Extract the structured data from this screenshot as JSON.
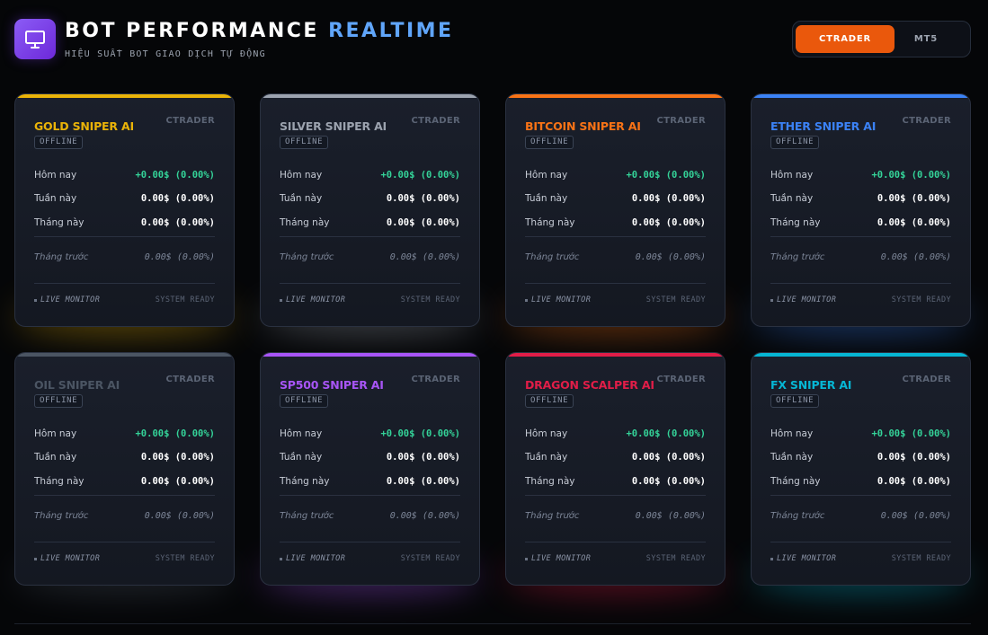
{
  "header": {
    "title_main": "BOT PERFORMANCE",
    "title_accent": "REALTIME",
    "subtitle": "HIỆU SUẤT BOT GIAO DỊCH TỰ ĐỘNG",
    "icon": "monitor-icon"
  },
  "platform_toggle": {
    "options": [
      "CTRADER",
      "MT5"
    ],
    "selected": "CTRADER"
  },
  "labels": {
    "today": "Hôm nay",
    "week": "Tuần này",
    "month": "Tháng này",
    "prev_month": "Tháng trước",
    "live_monitor": "LIVE MONITOR",
    "system_ready": "SYSTEM READY"
  },
  "bots": [
    {
      "name": "GOLD SNIPER AI",
      "platform": "CTRADER",
      "status": "OFFLINE",
      "accent": "#eab308",
      "today": "+0.00$ (0.00%)",
      "week": "0.00$ (0.00%)",
      "month": "0.00$ (0.00%)",
      "prev_month": "0.00$ (0.00%)"
    },
    {
      "name": "SILVER SNIPER AI",
      "platform": "CTRADER",
      "status": "OFFLINE",
      "accent": "#9ca3af",
      "today": "+0.00$ (0.00%)",
      "week": "0.00$ (0.00%)",
      "month": "0.00$ (0.00%)",
      "prev_month": "0.00$ (0.00%)"
    },
    {
      "name": "BITCOIN SNIPER AI",
      "platform": "CTRADER",
      "status": "OFFLINE",
      "accent": "#f97316",
      "today": "+0.00$ (0.00%)",
      "week": "0.00$ (0.00%)",
      "month": "0.00$ (0.00%)",
      "prev_month": "0.00$ (0.00%)"
    },
    {
      "name": "ETHER SNIPER AI",
      "platform": "CTRADER",
      "status": "OFFLINE",
      "accent": "#3b82f6",
      "today": "+0.00$ (0.00%)",
      "week": "0.00$ (0.00%)",
      "month": "0.00$ (0.00%)",
      "prev_month": "0.00$ (0.00%)"
    },
    {
      "name": "OIL SNIPER AI",
      "platform": "CTRADER",
      "status": "OFFLINE",
      "accent": "#4b5563",
      "today": "+0.00$ (0.00%)",
      "week": "0.00$ (0.00%)",
      "month": "0.00$ (0.00%)",
      "prev_month": "0.00$ (0.00%)"
    },
    {
      "name": "SP500 SNIPER AI",
      "platform": "CTRADER",
      "status": "OFFLINE",
      "accent": "#a855f7",
      "today": "+0.00$ (0.00%)",
      "week": "0.00$ (0.00%)",
      "month": "0.00$ (0.00%)",
      "prev_month": "0.00$ (0.00%)"
    },
    {
      "name": "DRAGON SCALPER AI",
      "platform": "CTRADER",
      "status": "OFFLINE",
      "accent": "#e11d48",
      "today": "+0.00$ (0.00%)",
      "week": "0.00$ (0.00%)",
      "month": "0.00$ (0.00%)",
      "prev_month": "0.00$ (0.00%)"
    },
    {
      "name": "FX SNIPER AI",
      "platform": "CTRADER",
      "status": "OFFLINE",
      "accent": "#06b6d4",
      "today": "+0.00$ (0.00%)",
      "week": "0.00$ (0.00%)",
      "month": "0.00$ (0.00%)",
      "prev_month": "0.00$ (0.00%)"
    }
  ]
}
